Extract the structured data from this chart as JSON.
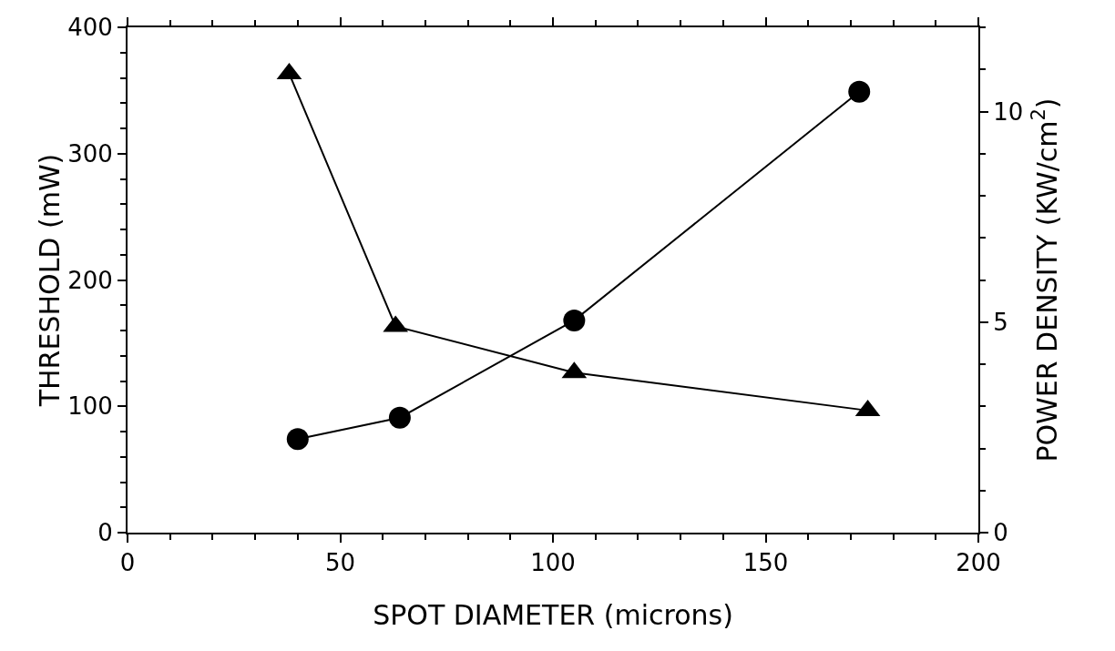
{
  "chart_data": {
    "type": "line",
    "xlabel": "SPOT DIAMETER (microns)",
    "ylabel": "THRESHOLD (mW)",
    "y2label": "POWER DENSITY (KW/cm$^{2}$)",
    "xlim": [
      0,
      200
    ],
    "xticks": [
      0,
      50,
      100,
      150,
      200
    ],
    "ylim": [
      0,
      400
    ],
    "yticks": [
      0,
      100,
      200,
      300,
      400
    ],
    "y2lim": [
      0,
      12
    ],
    "y2ticks": [
      0,
      5,
      10
    ],
    "series": [
      {
        "color": "#000000",
        "marker": "circle",
        "x": [
          40,
          64,
          105,
          172
        ],
        "values": [
          74,
          91,
          168,
          349
        ]
      },
      {
        "color": "#000000",
        "marker": "triangle",
        "axis": "y2",
        "x": [
          38,
          63,
          105,
          174
        ],
        "values": [
          10.9,
          4.9,
          3.8,
          2.9
        ]
      }
    ]
  }
}
